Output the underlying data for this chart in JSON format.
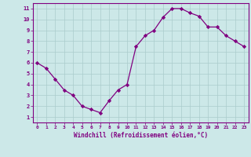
{
  "x": [
    0,
    1,
    2,
    3,
    4,
    5,
    6,
    7,
    8,
    9,
    10,
    11,
    12,
    13,
    14,
    15,
    16,
    17,
    18,
    19,
    20,
    21,
    22,
    23
  ],
  "y": [
    6.0,
    5.5,
    4.5,
    3.5,
    3.0,
    2.0,
    1.7,
    1.4,
    2.5,
    3.5,
    4.0,
    7.5,
    8.5,
    9.0,
    10.2,
    11.0,
    11.0,
    10.6,
    10.3,
    9.3,
    9.3,
    8.5,
    8.0,
    7.5
  ],
  "line_color": "#800080",
  "marker": "D",
  "marker_size": 2.2,
  "bg_color": "#cce8e8",
  "grid_color": "#aacccc",
  "xlabel": "Windchill (Refroidissement éolien,°C)",
  "xlim": [
    -0.5,
    23.5
  ],
  "ylim": [
    0.5,
    11.5
  ],
  "xtick_labels": [
    "0",
    "1",
    "2",
    "3",
    "4",
    "5",
    "6",
    "7",
    "8",
    "9",
    "10",
    "11",
    "12",
    "13",
    "14",
    "15",
    "16",
    "17",
    "18",
    "19",
    "20",
    "21",
    "22",
    "23"
  ],
  "ytick_labels": [
    "1",
    "2",
    "3",
    "4",
    "5",
    "6",
    "7",
    "8",
    "9",
    "10",
    "11"
  ],
  "tick_color": "#800080",
  "label_color": "#800080",
  "spine_color": "#800080"
}
